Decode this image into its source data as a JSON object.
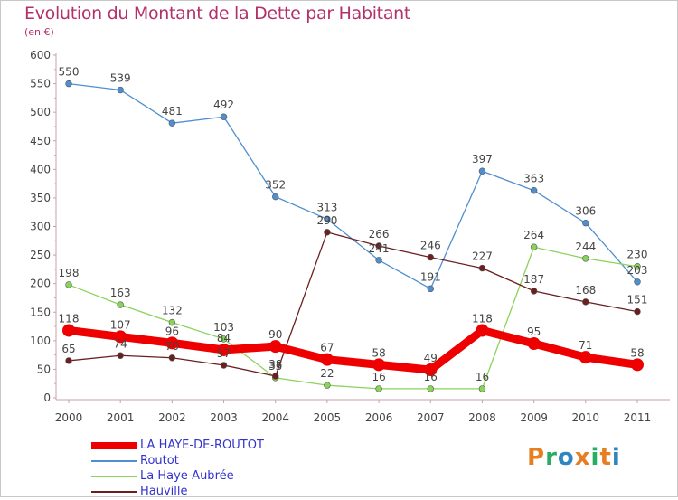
{
  "title": "Evolution du Montant de la Dette par Habitant",
  "unit": "(en €)",
  "brand": {
    "text": "Proxiti",
    "colors": [
      "#e67e22",
      "#27ae60",
      "#2e86c1",
      "#e67e22",
      "#27ae60",
      "#e67e22",
      "#2e86c1"
    ]
  },
  "chart_data": {
    "type": "line",
    "x": [
      "2000",
      "2001",
      "2002",
      "2003",
      "2004",
      "2005",
      "2006",
      "2007",
      "2008",
      "2009",
      "2010",
      "2011"
    ],
    "ylim": [
      0,
      600
    ],
    "yticks": [
      0,
      50,
      100,
      150,
      200,
      250,
      300,
      350,
      400,
      450,
      500,
      550,
      600
    ],
    "grid": false,
    "legend_position": "bottom-left",
    "series": [
      {
        "name": "LA HAYE-DE-ROUTOT",
        "color": "#ee0000",
        "emphasis": true,
        "values": [
          118,
          107,
          96,
          84,
          90,
          67,
          58,
          49,
          118,
          95,
          71,
          58
        ]
      },
      {
        "name": "Routot",
        "color": "#4f8fd0",
        "emphasis": false,
        "values": [
          550,
          539,
          481,
          492,
          352,
          313,
          241,
          191,
          397,
          363,
          306,
          203
        ]
      },
      {
        "name": "La Haye-Aubrée",
        "color": "#8ad35a",
        "emphasis": false,
        "values": [
          198,
          163,
          132,
          103,
          35,
          22,
          16,
          16,
          16,
          264,
          244,
          230
        ]
      },
      {
        "name": "Hauville",
        "color": "#6b1f1f",
        "emphasis": false,
        "values": [
          65,
          74,
          70,
          57,
          38,
          290,
          266,
          246,
          227,
          187,
          168,
          151
        ]
      }
    ],
    "point_labels": [
      {
        "series": "LA HAYE-DE-ROUTOT",
        "labels": [
          "118",
          "107",
          "96",
          "84",
          "90",
          "67",
          "58",
          "49",
          "118",
          "95",
          "71",
          "58"
        ]
      },
      {
        "series": "Routot",
        "labels": [
          "550",
          "539",
          "481",
          "492",
          "352",
          "313",
          "241",
          "191",
          "397",
          "363",
          "306",
          "203"
        ]
      },
      {
        "series": "La Haye-Aubrée",
        "labels": [
          "198",
          "163",
          "132",
          "103",
          "35",
          "22",
          "16",
          "16",
          "16",
          "264",
          "244",
          "230"
        ]
      },
      {
        "series": "Hauville",
        "labels": [
          "65",
          "74",
          "70",
          "57",
          "38",
          "290",
          "266",
          "246",
          "227",
          "187",
          "168",
          "151"
        ]
      }
    ]
  }
}
